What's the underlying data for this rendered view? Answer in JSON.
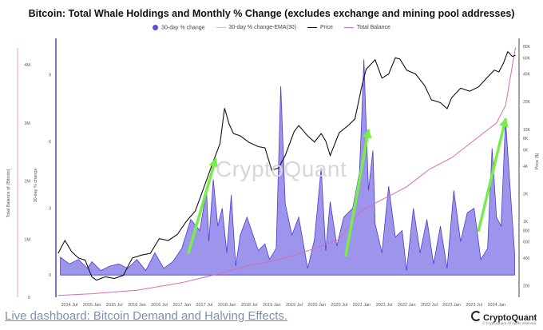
{
  "chart_data": {
    "type": "bar",
    "title": "Bitcoin: Total Whale Holdings and Monthly % Change (excludes exchange and mining pool addresses)",
    "legend": [
      "30-day % change",
      "30-day % change-EMA(30)",
      "Price",
      "Total Balance"
    ],
    "legend_placement": "top",
    "x_tick_labels": [
      "2014 Jul",
      "2015 Jan",
      "2015 Jul",
      "2016 Jan",
      "2016 Jul",
      "2017 Jan",
      "2017 Jul",
      "2018 Jan",
      "2018 Jul",
      "2019 Jan",
      "2019 Jul",
      "2020 Jan",
      "2020 Jul",
      "2021 Jan",
      "2021 Jul",
      "2022 Jan",
      "2022 Jul",
      "2023 Jan",
      "2023 Jul",
      "2024 Jan"
    ],
    "y_left_outer": {
      "label": "Total Balance of (Bitcoin)",
      "ticks": [
        "0",
        "1M",
        "2M",
        "3M",
        "4M"
      ],
      "range": [
        0,
        4400000
      ]
    },
    "y_left_inner": {
      "label": "30-day % change",
      "ticks": [
        "0",
        "3",
        "6",
        "9"
      ],
      "range": [
        -1,
        10.5
      ]
    },
    "y_right": {
      "label": "Price ($)",
      "scale": "log",
      "ticks": [
        "200",
        "400",
        "600",
        "800",
        "1K",
        "2K",
        "4K",
        "6K",
        "8K",
        "10K",
        "20K",
        "40K",
        "60K",
        "80K"
      ],
      "range": [
        150,
        90000
      ]
    },
    "grid": false,
    "series": [
      {
        "name": "30-day % change",
        "kind": "area",
        "color": "#5b4fd8",
        "x": [
          2014.3,
          2014.5,
          2014.7,
          2014.9,
          2015.0,
          2015.2,
          2015.4,
          2015.6,
          2015.8,
          2016.0,
          2016.2,
          2016.4,
          2016.6,
          2016.8,
          2017.0,
          2017.2,
          2017.4,
          2017.55,
          2017.6,
          2017.7,
          2017.8,
          2017.9,
          2018.0,
          2018.1,
          2018.2,
          2018.3,
          2018.45,
          2018.55,
          2018.7,
          2018.85,
          2018.95,
          2019.1,
          2019.2,
          2019.3,
          2019.45,
          2019.6,
          2019.8,
          2019.95,
          2020.1,
          2020.2,
          2020.3,
          2020.45,
          2020.6,
          2020.8,
          2020.95,
          2021.0,
          2021.05,
          2021.15,
          2021.25,
          2021.3,
          2021.45,
          2021.6,
          2021.75,
          2021.9,
          2022.0,
          2022.15,
          2022.3,
          2022.45,
          2022.6,
          2022.75,
          2022.9,
          2023.05,
          2023.2,
          2023.35,
          2023.5,
          2023.65,
          2023.8,
          2023.9,
          2024.0,
          2024.1,
          2024.2,
          2024.3,
          2024.4
        ],
        "values": [
          0.8,
          0.5,
          0.7,
          0.3,
          0.6,
          0.2,
          0.4,
          0.5,
          0.3,
          0.7,
          0.2,
          1.0,
          0.3,
          0.6,
          1.2,
          2.5,
          2.0,
          3.8,
          1.5,
          4.3,
          2.2,
          3.0,
          1.0,
          3.6,
          0.4,
          1.8,
          2.6,
          2.0,
          1.1,
          1.4,
          0.7,
          1.2,
          8.5,
          3.2,
          1.8,
          2.6,
          0.3,
          1.6,
          4.8,
          1.1,
          3.3,
          1.3,
          2.6,
          3.0,
          4.6,
          7.0,
          9.7,
          3.8,
          5.6,
          2.3,
          1.0,
          4.0,
          1.7,
          2.0,
          0.2,
          3.0,
          1.0,
          2.5,
          0.5,
          2.2,
          0.3,
          3.8,
          1.5,
          2.8,
          3.0,
          0.7,
          1.2,
          5.7,
          2.6,
          2.2,
          7.0,
          4.0,
          1.0
        ]
      },
      {
        "name": "Price",
        "kind": "line",
        "color": "#111111",
        "x": [
          2014.25,
          2014.4,
          2014.55,
          2014.7,
          2014.85,
          2015.0,
          2015.1,
          2015.3,
          2015.5,
          2015.7,
          2015.9,
          2016.1,
          2016.3,
          2016.5,
          2016.7,
          2016.9,
          2017.1,
          2017.3,
          2017.5,
          2017.7,
          2017.85,
          2017.95,
          2018.05,
          2018.15,
          2018.3,
          2018.5,
          2018.7,
          2018.85,
          2019.0,
          2019.15,
          2019.3,
          2019.5,
          2019.6,
          2019.8,
          2019.95,
          2020.1,
          2020.2,
          2020.3,
          2020.5,
          2020.7,
          2020.85,
          2021.0,
          2021.1,
          2021.3,
          2021.45,
          2021.6,
          2021.75,
          2021.85,
          2022.0,
          2022.2,
          2022.4,
          2022.55,
          2022.75,
          2022.9,
          2023.0,
          2023.2,
          2023.4,
          2023.6,
          2023.8,
          2023.95,
          2024.05,
          2024.15,
          2024.25,
          2024.35,
          2024.42
        ],
        "values": [
          450,
          620,
          470,
          400,
          380,
          250,
          230,
          250,
          240,
          260,
          400,
          430,
          450,
          650,
          620,
          720,
          1000,
          1300,
          2400,
          4500,
          7000,
          17000,
          11500,
          9000,
          8500,
          7200,
          6500,
          6300,
          3600,
          3800,
          5200,
          9500,
          11000,
          8500,
          7300,
          9000,
          7500,
          5200,
          9200,
          11000,
          13000,
          29000,
          45000,
          57000,
          36000,
          40000,
          60000,
          58000,
          44000,
          40000,
          30000,
          21000,
          19500,
          16800,
          22000,
          28000,
          26000,
          29000,
          37000,
          44000,
          42000,
          52000,
          70000,
          62000,
          64000
        ]
      },
      {
        "name": "Total Balance",
        "kind": "line",
        "color": "#d86bb5",
        "x": [
          2014.25,
          2015.0,
          2016.0,
          2017.0,
          2017.8,
          2018.5,
          2019.0,
          2019.5,
          2020.0,
          2020.5,
          2021.0,
          2021.5,
          2022.0,
          2022.5,
          2023.0,
          2023.5,
          2024.0,
          2024.2,
          2024.42
        ],
        "values": [
          30000,
          60000,
          120000,
          250000,
          400000,
          550000,
          620000,
          720000,
          850000,
          1000000,
          1500000,
          1700000,
          1900000,
          2200000,
          2400000,
          2700000,
          3000000,
          3300000,
          4300000
        ]
      }
    ],
    "annotations": [
      {
        "type": "arrow",
        "color": "#78ec4c",
        "from": [
          2017.15,
          1.0
        ],
        "to": [
          2017.75,
          5.2
        ]
      },
      {
        "type": "arrow",
        "color": "#78ec4c",
        "from": [
          2020.65,
          0.9
        ],
        "to": [
          2021.15,
          6.5
        ]
      },
      {
        "type": "arrow",
        "color": "#78ec4c",
        "from": [
          2023.6,
          2.0
        ],
        "to": [
          2024.2,
          7.0
        ]
      }
    ]
  },
  "watermark": "CryptoQuant",
  "dashboard_link": "Live dashboard: Bitcoin Demand and Halving Effects.",
  "brand": {
    "name": "CryptoQuant",
    "copyright": "© CryptoQuant All rights reserved."
  }
}
